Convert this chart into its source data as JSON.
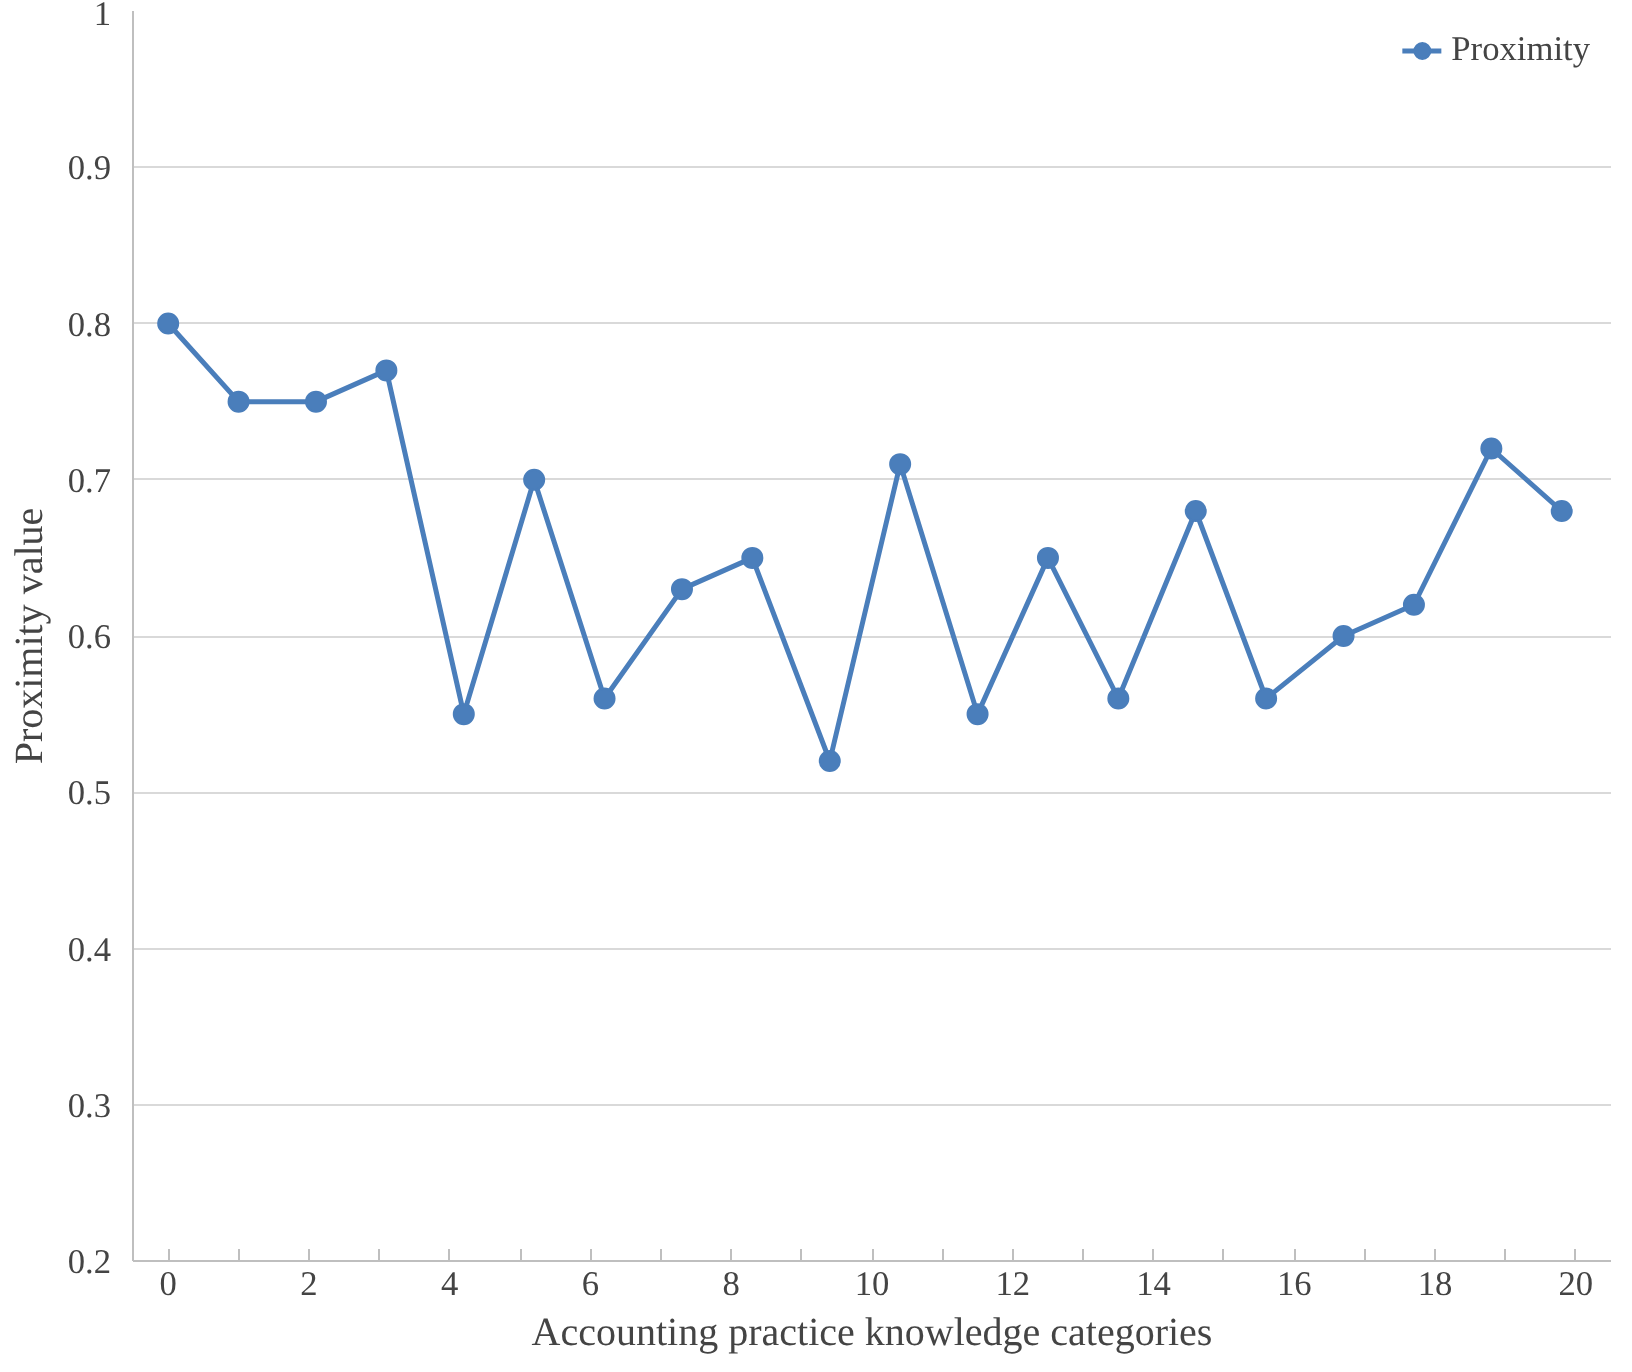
{
  "chart_data": {
    "type": "line",
    "xlabel": "Accounting practice knowledge categories",
    "ylabel": "Proximity value",
    "x": [
      0,
      1.0,
      2.1,
      3.1,
      4.2,
      5.2,
      6.2,
      7.3,
      8.3,
      9.4,
      10.4,
      11.5,
      12.5,
      13.5,
      14.6,
      15.6,
      16.7,
      17.7,
      18.8,
      19.8
    ],
    "series": [
      {
        "name": "Proximity",
        "color": "#4a7ebb",
        "values": [
          0.8,
          0.75,
          0.75,
          0.77,
          0.55,
          0.7,
          0.56,
          0.63,
          0.65,
          0.52,
          0.71,
          0.55,
          0.65,
          0.56,
          0.68,
          0.56,
          0.6,
          0.62,
          0.72,
          0.68
        ]
      }
    ],
    "xlim": [
      -0.5,
      20.5
    ],
    "ylim": [
      0.2,
      1
    ],
    "xticks": [
      0,
      {
        "value": 1,
        "label": null
      },
      2,
      {
        "value": 3,
        "label": null
      },
      4,
      {
        "value": 5,
        "label": null
      },
      6,
      {
        "value": 7,
        "label": null
      },
      8,
      {
        "value": 9,
        "label": null
      },
      10,
      {
        "value": 11,
        "label": null
      },
      12,
      {
        "value": 13,
        "label": null
      },
      14,
      {
        "value": 15,
        "label": null
      },
      16,
      {
        "value": 17,
        "label": null
      },
      18,
      {
        "value": 19,
        "label": null
      },
      20
    ],
    "yticks": [
      0.2,
      0.3,
      0.4,
      0.5,
      0.6,
      0.7,
      0.8,
      0.9,
      1
    ],
    "grid": "y",
    "legend": "top right",
    "marker": "circle",
    "line_style": "solid"
  }
}
